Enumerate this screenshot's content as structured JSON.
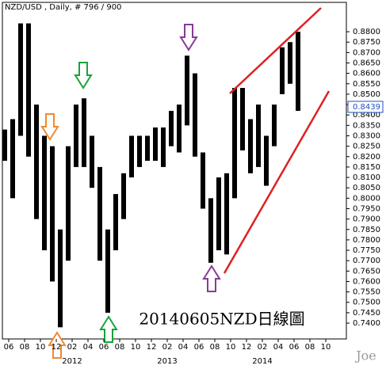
{
  "chart_data": {
    "type": "range-bar",
    "title": "NZD/USD , Daily, # 796 / 900",
    "annotation": "20140605NZD日線圖",
    "signature": "Joe",
    "color": "#000000",
    "x": [
      "2011-05",
      "2011-06",
      "2011-07",
      "2011-08",
      "2011-09",
      "2011-10",
      "2011-11",
      "2011-12",
      "2012-01",
      "2012-02",
      "2012-03",
      "2012-04",
      "2012-05",
      "2012-06",
      "2012-07",
      "2012-08",
      "2012-09",
      "2012-10",
      "2012-11",
      "2012-12",
      "2013-01",
      "2013-02",
      "2013-03",
      "2013-04",
      "2013-05",
      "2013-06",
      "2013-07",
      "2013-08",
      "2013-09",
      "2013-10",
      "2013-11",
      "2013-12",
      "2014-01",
      "2014-02",
      "2014-03",
      "2014-04",
      "2014-05",
      "2014-06"
    ],
    "high": [
      0.833,
      0.838,
      0.884,
      0.884,
      0.845,
      0.83,
      0.825,
      0.785,
      0.825,
      0.845,
      0.848,
      0.83,
      0.815,
      0.785,
      0.802,
      0.812,
      0.83,
      0.83,
      0.83,
      0.834,
      0.834,
      0.842,
      0.845,
      0.8685,
      0.86,
      0.822,
      0.8,
      0.81,
      0.812,
      0.853,
      0.853,
      0.838,
      0.845,
      0.83,
      0.845,
      0.8725,
      0.875,
      0.88
    ],
    "low": [
      0.818,
      0.8,
      0.83,
      0.82,
      0.79,
      0.775,
      0.76,
      0.738,
      0.77,
      0.815,
      0.815,
      0.805,
      0.77,
      0.745,
      0.775,
      0.79,
      0.81,
      0.815,
      0.818,
      0.818,
      0.815,
      0.825,
      0.822,
      0.835,
      0.82,
      0.795,
      0.769,
      0.775,
      0.773,
      0.8,
      0.823,
      0.812,
      0.815,
      0.806,
      0.825,
      0.85,
      0.855,
      0.842
    ],
    "last_price": 0.8439,
    "last_price_color": "#1f4fbf",
    "ylim": [
      0.7324,
      0.8941
    ],
    "yticks": [
      {
        "value": 0.74,
        "label": "0.7400"
      },
      {
        "value": 0.745,
        "label": "0.7450"
      },
      {
        "value": 0.75,
        "label": "0.7500"
      },
      {
        "value": 0.755,
        "label": "0.7550"
      },
      {
        "value": 0.76,
        "label": "0.7600"
      },
      {
        "value": 0.765,
        "label": "0.7650"
      },
      {
        "value": 0.77,
        "label": "0.7700"
      },
      {
        "value": 0.775,
        "label": "0.7750"
      },
      {
        "value": 0.78,
        "label": "0.7800"
      },
      {
        "value": 0.785,
        "label": "0.7850"
      },
      {
        "value": 0.79,
        "label": "0.7900"
      },
      {
        "value": 0.795,
        "label": "0.7950"
      },
      {
        "value": 0.8,
        "label": "0.8000"
      },
      {
        "value": 0.805,
        "label": "0.8050"
      },
      {
        "value": 0.81,
        "label": "0.8100"
      },
      {
        "value": 0.815,
        "label": "0.8150"
      },
      {
        "value": 0.82,
        "label": "0.8200"
      },
      {
        "value": 0.825,
        "label": "0.8250"
      },
      {
        "value": 0.83,
        "label": "0.8300"
      },
      {
        "value": 0.835,
        "label": "0.8350"
      },
      {
        "value": 0.84,
        "label": "0.8400"
      },
      {
        "value": 0.845,
        "label": "0.8450"
      },
      {
        "value": 0.85,
        "label": "0.8500"
      },
      {
        "value": 0.855,
        "label": "0.8550"
      },
      {
        "value": 0.86,
        "label": "0.8600"
      },
      {
        "value": 0.865,
        "label": "0.8650"
      },
      {
        "value": 0.87,
        "label": "0.8700"
      },
      {
        "value": 0.875,
        "label": "0.8750"
      },
      {
        "value": 0.88,
        "label": "0.8800"
      }
    ],
    "xticks": [
      {
        "value": "2011-06",
        "label": "06"
      },
      {
        "value": "2011-08",
        "label": "08"
      },
      {
        "value": "2011-10",
        "label": "10"
      },
      {
        "value": "2011-12",
        "label": "12"
      },
      {
        "value": "2012-02",
        "label": "02"
      },
      {
        "value": "2012-04",
        "label": "04"
      },
      {
        "value": "2012-06",
        "label": "06"
      },
      {
        "value": "2012-08",
        "label": "08"
      },
      {
        "value": "2012-10",
        "label": "10"
      },
      {
        "value": "2012-12",
        "label": "12"
      },
      {
        "value": "2013-02",
        "label": "02"
      },
      {
        "value": "2013-04",
        "label": "04"
      },
      {
        "value": "2013-06",
        "label": "06"
      },
      {
        "value": "2013-08",
        "label": "08"
      },
      {
        "value": "2013-10",
        "label": "10"
      },
      {
        "value": "2013-12",
        "label": "12"
      },
      {
        "value": "2014-02",
        "label": "02"
      },
      {
        "value": "2014-04",
        "label": "04"
      },
      {
        "value": "2014-06",
        "label": "06"
      },
      {
        "value": "2014-08",
        "label": "08"
      },
      {
        "value": "2014-10",
        "label": "10"
      }
    ],
    "year_labels": [
      {
        "value": "2012-02",
        "label": "2012"
      },
      {
        "value": "2013-02",
        "label": "2013"
      },
      {
        "value": "2014-02",
        "label": "2014"
      }
    ]
  }
}
